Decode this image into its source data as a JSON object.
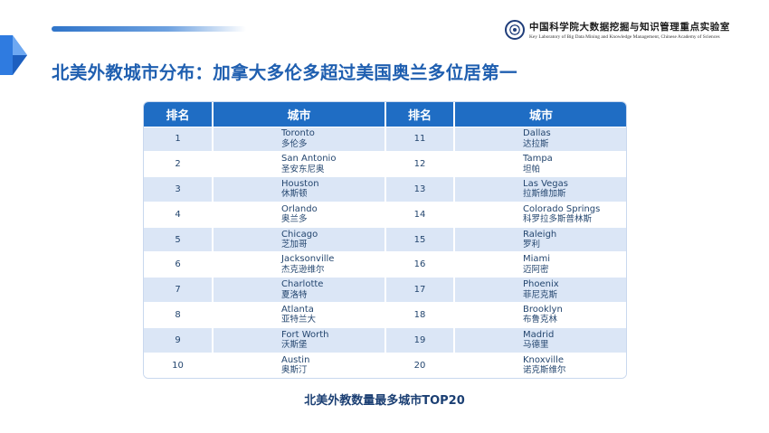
{
  "header": {
    "logo_cn": "中国科学院大数据挖掘与知识管理重点实验室",
    "logo_en": "Key Laboratory of Big Data Mining and Knowledge Management, Chinese Academy of Sciences"
  },
  "slide": {
    "title": "北美外教城市分布：加拿大多伦多超过美国奥兰多位居第一",
    "caption": "北美外教数量最多城市TOP20"
  },
  "table": {
    "headers": [
      "排名",
      "城市",
      "排名",
      "城市"
    ],
    "rows": [
      {
        "rank_l": "1",
        "city_l_en": "Toronto",
        "city_l_cn": "多伦多",
        "rank_r": "11",
        "city_r_en": "Dallas",
        "city_r_cn": "达拉斯"
      },
      {
        "rank_l": "2",
        "city_l_en": "San Antonio",
        "city_l_cn": "圣安东尼奥",
        "rank_r": "12",
        "city_r_en": "Tampa",
        "city_r_cn": "坦帕"
      },
      {
        "rank_l": "3",
        "city_l_en": "Houston",
        "city_l_cn": "休斯顿",
        "rank_r": "13",
        "city_r_en": "Las Vegas",
        "city_r_cn": "拉斯维加斯"
      },
      {
        "rank_l": "4",
        "city_l_en": "Orlando",
        "city_l_cn": "奥兰多",
        "rank_r": "14",
        "city_r_en": "Colorado Springs",
        "city_r_cn": "科罗拉多斯普林斯"
      },
      {
        "rank_l": "5",
        "city_l_en": "Chicago",
        "city_l_cn": "芝加哥",
        "rank_r": "15",
        "city_r_en": "Raleigh",
        "city_r_cn": "罗利"
      },
      {
        "rank_l": "6",
        "city_l_en": "Jacksonville",
        "city_l_cn": "杰克逊维尔",
        "rank_r": "16",
        "city_r_en": "Miami",
        "city_r_cn": "迈阿密"
      },
      {
        "rank_l": "7",
        "city_l_en": "Charlotte",
        "city_l_cn": "夏洛特",
        "rank_r": "17",
        "city_r_en": "Phoenix",
        "city_r_cn": "菲尼克斯"
      },
      {
        "rank_l": "8",
        "city_l_en": "Atlanta",
        "city_l_cn": "亚特兰大",
        "rank_r": "18",
        "city_r_en": "Brooklyn",
        "city_r_cn": "布鲁克林"
      },
      {
        "rank_l": "9",
        "city_l_en": "Fort Worth",
        "city_l_cn": "沃斯堡",
        "rank_r": "19",
        "city_r_en": "Madrid",
        "city_r_cn": "马德里"
      },
      {
        "rank_l": "10",
        "city_l_en": "Austin",
        "city_l_cn": "奥斯汀",
        "rank_r": "20",
        "city_r_en": "Knoxville",
        "city_r_cn": "诺克斯维尔"
      }
    ]
  },
  "colors": {
    "accent": "#1f6dc4",
    "title": "#1f5fb0",
    "row_alt": "#dbe6f6"
  },
  "icons": {
    "corner": "blue-cube-corner-icon",
    "logo": "cas-seal-logo"
  }
}
